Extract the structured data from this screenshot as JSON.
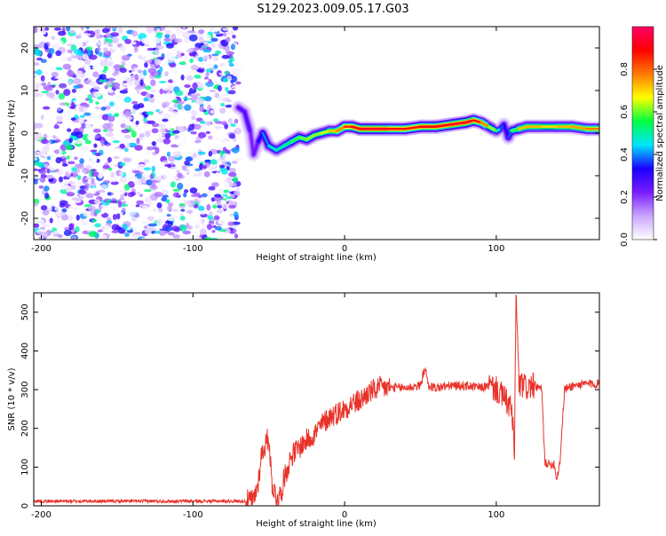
{
  "title": "S129.2023.009.05.17.G03",
  "chart_data": [
    {
      "type": "heatmap",
      "xlabel": "Height of straight line (km)",
      "ylabel": "Frequency (Hz)",
      "xlim": [
        -205,
        168
      ],
      "ylim": [
        -25,
        25
      ],
      "xticks": [
        -200,
        -100,
        0,
        100
      ],
      "yticks": [
        -20,
        -10,
        0,
        10,
        20
      ],
      "colorbar": {
        "label": "Normalized spectral amplitude",
        "range": [
          0,
          1
        ],
        "ticks": [
          0.0,
          0.2,
          0.4,
          0.6,
          0.8
        ],
        "colors": [
          "#ffffff",
          "#c9a6ff",
          "#7a1cff",
          "#1a00ff",
          "#00e5ff",
          "#00ff40",
          "#ffff00",
          "#ff7a00",
          "#ff0000",
          "#ff0066"
        ]
      },
      "noise_region_x": [
        -205,
        -70
      ],
      "ridge": {
        "x": [
          -70,
          -66,
          -62,
          -60,
          -57,
          -54,
          -50,
          -45,
          -40,
          -35,
          -30,
          -25,
          -20,
          -15,
          -10,
          -5,
          0,
          5,
          10,
          20,
          30,
          40,
          50,
          60,
          70,
          80,
          85,
          90,
          95,
          100,
          103,
          105,
          108,
          110,
          115,
          120,
          130,
          140,
          150,
          160,
          168
        ],
        "y": [
          6,
          5,
          0,
          -5,
          -2,
          0,
          -3,
          -4,
          -3,
          -2,
          -1,
          -1.5,
          -0.5,
          0,
          0.5,
          0.5,
          1.5,
          1.5,
          1,
          1,
          1,
          1,
          1.5,
          1.5,
          2,
          2.5,
          3,
          2.5,
          1.5,
          0.5,
          1,
          2,
          -1,
          0.5,
          1,
          1.5,
          1.5,
          1.5,
          1.5,
          1,
          1
        ],
        "amplitude": [
          0.25,
          0.3,
          0.25,
          0.2,
          0.3,
          0.35,
          0.45,
          0.5,
          0.5,
          0.55,
          0.6,
          0.6,
          0.65,
          0.6,
          0.7,
          0.75,
          0.8,
          0.9,
          0.9,
          0.95,
          0.9,
          0.85,
          0.9,
          0.9,
          0.9,
          0.95,
          0.9,
          0.85,
          0.7,
          0.55,
          0.4,
          0.35,
          0.3,
          0.45,
          0.7,
          0.75,
          0.7,
          0.7,
          0.75,
          0.75,
          0.8
        ]
      }
    },
    {
      "type": "line",
      "xlabel": "Height of straight line (km)",
      "ylabel": "SNR (10 * v/v)",
      "xlim": [
        -205,
        168
      ],
      "ylim": [
        0,
        550
      ],
      "xticks": [
        -200,
        -100,
        0,
        100
      ],
      "yticks": [
        0,
        100,
        200,
        300,
        400,
        500
      ],
      "series": [
        {
          "color": "#e8332a",
          "x": [
            -205,
            -150,
            -100,
            -75,
            -65,
            -60,
            -57,
            -55,
            -52,
            -50,
            -48,
            -45,
            -42,
            -40,
            -35,
            -30,
            -25,
            -20,
            -15,
            -10,
            -5,
            0,
            5,
            10,
            15,
            20,
            25,
            30,
            40,
            50,
            53,
            55,
            60,
            70,
            80,
            90,
            95,
            100,
            105,
            110,
            112,
            113,
            115,
            118,
            120,
            125,
            130,
            132,
            135,
            138,
            140,
            142,
            145,
            150,
            160,
            168
          ],
          "y": [
            12,
            12,
            12,
            12,
            12,
            15,
            60,
            130,
            160,
            180,
            60,
            20,
            30,
            70,
            130,
            150,
            170,
            185,
            210,
            230,
            240,
            250,
            265,
            270,
            290,
            300,
            305,
            305,
            305,
            310,
            360,
            310,
            305,
            310,
            310,
            305,
            310,
            300,
            280,
            250,
            140,
            550,
            310,
            310,
            305,
            310,
            300,
            115,
            105,
            110,
            70,
            115,
            300,
            310,
            315,
            315
          ]
        }
      ]
    }
  ]
}
